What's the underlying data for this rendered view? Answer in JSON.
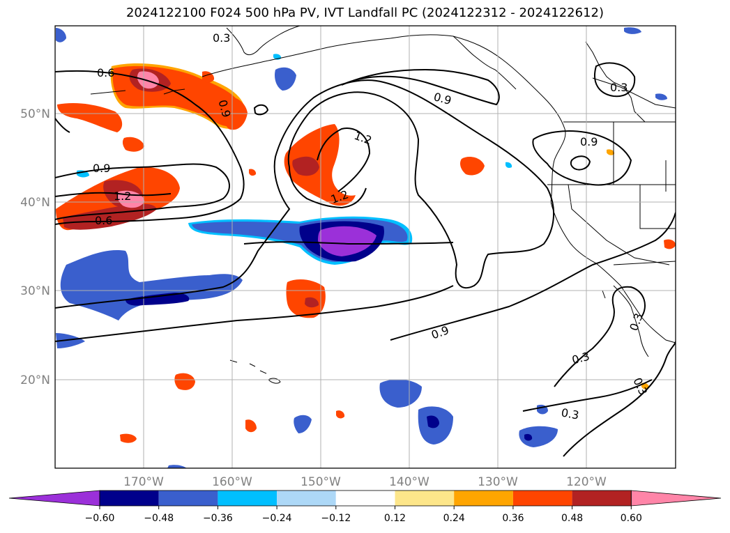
{
  "title": "2024122100 F024 500 hPa PV, IVT Landfall PC (2024122312 - 2024122612)",
  "lon_labels": [
    "170°W",
    "160°W",
    "150°W",
    "140°W",
    "130°W",
    "120°W"
  ],
  "lat_labels": [
    "50°N",
    "40°N",
    "30°N",
    "20°N"
  ],
  "colorbar": {
    "tick_labels": [
      "−0.60",
      "−0.48",
      "−0.36",
      "−0.24",
      "−0.12",
      "0.12",
      "0.24",
      "0.36",
      "0.48",
      "0.60"
    ],
    "colors": [
      "#9b30d9",
      "#00008b",
      "#3a5fcd",
      "#00bfff",
      "#add8f7",
      "#ffffff",
      "#fde68a",
      "#ffa500",
      "#ff4500",
      "#b22222",
      "#ff85a8"
    ]
  },
  "contour_labels": [
    {
      "text": "0.6"
    },
    {
      "text": "0.9"
    },
    {
      "text": "0.9"
    },
    {
      "text": "1.2"
    },
    {
      "text": "1.2"
    },
    {
      "text": "0.9"
    },
    {
      "text": "1.2"
    },
    {
      "text": "0.6"
    },
    {
      "text": "0.9"
    },
    {
      "text": "0.3"
    },
    {
      "text": "0.9"
    },
    {
      "text": "0.3"
    },
    {
      "text": "0.3"
    },
    {
      "text": "0.3"
    },
    {
      "text": "0.3"
    },
    {
      "text": "0.3"
    }
  ]
}
